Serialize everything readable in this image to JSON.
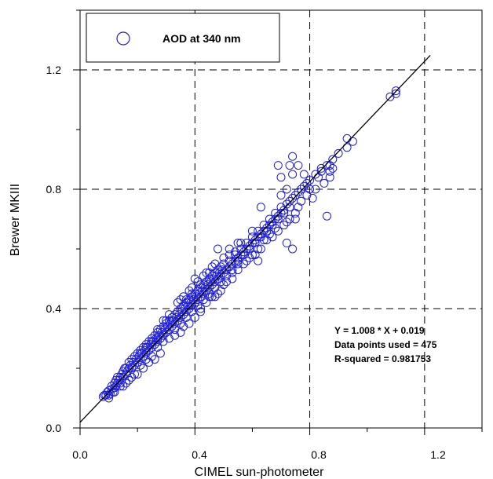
{
  "chart_data": {
    "type": "scatter",
    "xlabel": "CIMEL sun-photometer",
    "ylabel": "Brewer MKIII",
    "xlim": [
      0.0,
      1.4
    ],
    "ylim": [
      0.0,
      1.4
    ],
    "x_ticks": [
      "0.0",
      "0.4",
      "0.8",
      "1.2"
    ],
    "y_ticks": [
      "0.0",
      "0.4",
      "0.8",
      "1.2"
    ],
    "grid": "dashed at major ticks",
    "legend": {
      "placement": "top-left",
      "entry": "AOD at 340 nm",
      "marker": "open-circle"
    },
    "color": "#1f1fd6",
    "fit_line": {
      "slope": 1.008,
      "intercept": 0.019,
      "x_range": [
        0.0,
        1.22
      ]
    },
    "annotations": [
      "Y = 1.008 * X + 0.019",
      "Data points used = 475",
      "R-squared = 0.981753"
    ],
    "series": [
      {
        "name": "AOD at 340 nm",
        "points": [
          [
            0.08,
            0.105
          ],
          [
            0.085,
            0.11
          ],
          [
            0.09,
            0.11
          ],
          [
            0.095,
            0.12
          ],
          [
            0.1,
            0.11
          ],
          [
            0.1,
            0.125
          ],
          [
            0.105,
            0.115
          ],
          [
            0.11,
            0.13
          ],
          [
            0.11,
            0.14
          ],
          [
            0.115,
            0.12
          ],
          [
            0.12,
            0.135
          ],
          [
            0.12,
            0.15
          ],
          [
            0.125,
            0.16
          ],
          [
            0.125,
            0.14
          ],
          [
            0.13,
            0.17
          ],
          [
            0.13,
            0.15
          ],
          [
            0.135,
            0.16
          ],
          [
            0.14,
            0.17
          ],
          [
            0.14,
            0.15
          ],
          [
            0.145,
            0.18
          ],
          [
            0.15,
            0.17
          ],
          [
            0.15,
            0.19
          ],
          [
            0.155,
            0.2
          ],
          [
            0.16,
            0.18
          ],
          [
            0.16,
            0.2
          ],
          [
            0.165,
            0.19
          ],
          [
            0.17,
            0.2
          ],
          [
            0.17,
            0.22
          ],
          [
            0.175,
            0.21
          ],
          [
            0.18,
            0.2
          ],
          [
            0.18,
            0.23
          ],
          [
            0.185,
            0.22
          ],
          [
            0.19,
            0.21
          ],
          [
            0.19,
            0.24
          ],
          [
            0.195,
            0.23
          ],
          [
            0.2,
            0.22
          ],
          [
            0.2,
            0.25
          ],
          [
            0.205,
            0.24
          ],
          [
            0.21,
            0.23
          ],
          [
            0.21,
            0.26
          ],
          [
            0.215,
            0.25
          ],
          [
            0.22,
            0.24
          ],
          [
            0.22,
            0.27
          ],
          [
            0.225,
            0.26
          ],
          [
            0.23,
            0.25
          ],
          [
            0.23,
            0.28
          ],
          [
            0.235,
            0.27
          ],
          [
            0.24,
            0.26
          ],
          [
            0.24,
            0.29
          ],
          [
            0.245,
            0.28
          ],
          [
            0.25,
            0.27
          ],
          [
            0.25,
            0.3
          ],
          [
            0.255,
            0.29
          ],
          [
            0.26,
            0.28
          ],
          [
            0.26,
            0.31
          ],
          [
            0.265,
            0.3
          ],
          [
            0.27,
            0.29
          ],
          [
            0.27,
            0.32
          ],
          [
            0.275,
            0.31
          ],
          [
            0.28,
            0.3
          ],
          [
            0.28,
            0.33
          ],
          [
            0.285,
            0.32
          ],
          [
            0.29,
            0.31
          ],
          [
            0.29,
            0.34
          ],
          [
            0.295,
            0.33
          ],
          [
            0.3,
            0.32
          ],
          [
            0.3,
            0.35
          ],
          [
            0.305,
            0.34
          ],
          [
            0.31,
            0.33
          ],
          [
            0.31,
            0.36
          ],
          [
            0.315,
            0.35
          ],
          [
            0.32,
            0.34
          ],
          [
            0.32,
            0.37
          ],
          [
            0.325,
            0.36
          ],
          [
            0.33,
            0.35
          ],
          [
            0.33,
            0.38
          ],
          [
            0.335,
            0.37
          ],
          [
            0.34,
            0.36
          ],
          [
            0.34,
            0.39
          ],
          [
            0.345,
            0.38
          ],
          [
            0.35,
            0.37
          ],
          [
            0.35,
            0.4
          ],
          [
            0.355,
            0.39
          ],
          [
            0.36,
            0.38
          ],
          [
            0.36,
            0.41
          ],
          [
            0.365,
            0.4
          ],
          [
            0.37,
            0.39
          ],
          [
            0.37,
            0.42
          ],
          [
            0.375,
            0.41
          ],
          [
            0.38,
            0.4
          ],
          [
            0.38,
            0.43
          ],
          [
            0.385,
            0.42
          ],
          [
            0.39,
            0.41
          ],
          [
            0.39,
            0.44
          ],
          [
            0.395,
            0.43
          ],
          [
            0.4,
            0.42
          ],
          [
            0.4,
            0.45
          ],
          [
            0.405,
            0.44
          ],
          [
            0.41,
            0.43
          ],
          [
            0.41,
            0.46
          ],
          [
            0.415,
            0.45
          ],
          [
            0.42,
            0.44
          ],
          [
            0.42,
            0.47
          ],
          [
            0.425,
            0.46
          ],
          [
            0.43,
            0.45
          ],
          [
            0.43,
            0.48
          ],
          [
            0.435,
            0.47
          ],
          [
            0.44,
            0.46
          ],
          [
            0.44,
            0.49
          ],
          [
            0.445,
            0.48
          ],
          [
            0.45,
            0.47
          ],
          [
            0.45,
            0.5
          ],
          [
            0.455,
            0.49
          ],
          [
            0.46,
            0.48
          ],
          [
            0.46,
            0.51
          ],
          [
            0.465,
            0.5
          ],
          [
            0.47,
            0.49
          ],
          [
            0.47,
            0.52
          ],
          [
            0.475,
            0.51
          ],
          [
            0.48,
            0.5
          ],
          [
            0.48,
            0.53
          ],
          [
            0.485,
            0.52
          ],
          [
            0.49,
            0.51
          ],
          [
            0.49,
            0.54
          ],
          [
            0.495,
            0.53
          ],
          [
            0.5,
            0.52
          ],
          [
            0.5,
            0.55
          ],
          [
            0.51,
            0.53
          ],
          [
            0.52,
            0.54
          ],
          [
            0.52,
            0.56
          ],
          [
            0.53,
            0.55
          ],
          [
            0.54,
            0.56
          ],
          [
            0.54,
            0.58
          ],
          [
            0.55,
            0.57
          ],
          [
            0.56,
            0.58
          ],
          [
            0.56,
            0.6
          ],
          [
            0.57,
            0.59
          ],
          [
            0.58,
            0.6
          ],
          [
            0.58,
            0.62
          ],
          [
            0.59,
            0.61
          ],
          [
            0.6,
            0.62
          ],
          [
            0.6,
            0.64
          ],
          [
            0.61,
            0.63
          ],
          [
            0.62,
            0.64
          ],
          [
            0.62,
            0.66
          ],
          [
            0.63,
            0.65
          ],
          [
            0.64,
            0.66
          ],
          [
            0.64,
            0.68
          ],
          [
            0.65,
            0.67
          ],
          [
            0.66,
            0.68
          ],
          [
            0.66,
            0.7
          ],
          [
            0.67,
            0.69
          ],
          [
            0.68,
            0.7
          ],
          [
            0.68,
            0.72
          ],
          [
            0.69,
            0.71
          ],
          [
            0.7,
            0.72
          ],
          [
            0.7,
            0.74
          ],
          [
            0.71,
            0.73
          ],
          [
            0.72,
            0.75
          ],
          [
            0.73,
            0.76
          ],
          [
            0.74,
            0.77
          ],
          [
            0.75,
            0.78
          ],
          [
            0.76,
            0.79
          ],
          [
            0.77,
            0.8
          ],
          [
            0.78,
            0.81
          ],
          [
            0.79,
            0.82
          ],
          [
            0.8,
            0.83
          ],
          [
            0.82,
            0.85
          ],
          [
            0.84,
            0.86
          ],
          [
            0.86,
            0.88
          ],
          [
            0.88,
            0.9
          ],
          [
            0.9,
            0.92
          ],
          [
            0.93,
            0.94
          ],
          [
            0.93,
            0.97
          ],
          [
            0.95,
            0.96
          ],
          [
            1.08,
            1.11
          ],
          [
            1.1,
            1.13
          ],
          [
            1.1,
            1.12
          ],
          [
            0.3,
            0.36
          ],
          [
            0.33,
            0.31
          ],
          [
            0.35,
            0.43
          ],
          [
            0.36,
            0.34
          ],
          [
            0.4,
            0.5
          ],
          [
            0.42,
            0.39
          ],
          [
            0.45,
            0.44
          ],
          [
            0.46,
            0.54
          ],
          [
            0.48,
            0.45
          ],
          [
            0.5,
            0.48
          ],
          [
            0.52,
            0.6
          ],
          [
            0.53,
            0.5
          ],
          [
            0.55,
            0.53
          ],
          [
            0.56,
            0.62
          ],
          [
            0.57,
            0.55
          ],
          [
            0.59,
            0.57
          ],
          [
            0.6,
            0.66
          ],
          [
            0.61,
            0.58
          ],
          [
            0.63,
            0.6
          ],
          [
            0.65,
            0.63
          ],
          [
            0.67,
            0.64
          ],
          [
            0.69,
            0.66
          ],
          [
            0.7,
            0.78
          ],
          [
            0.71,
            0.68
          ],
          [
            0.72,
            0.8
          ],
          [
            0.72,
            0.69
          ],
          [
            0.73,
            0.7
          ],
          [
            0.73,
            0.88
          ],
          [
            0.74,
            0.85
          ],
          [
            0.74,
            0.91
          ],
          [
            0.75,
            0.72
          ],
          [
            0.76,
            0.74
          ],
          [
            0.76,
            0.88
          ],
          [
            0.77,
            0.76
          ],
          [
            0.78,
            0.85
          ],
          [
            0.79,
            0.78
          ],
          [
            0.8,
            0.8
          ],
          [
            0.81,
            0.77
          ],
          [
            0.82,
            0.8
          ],
          [
            0.83,
            0.84
          ],
          [
            0.84,
            0.87
          ],
          [
            0.85,
            0.82
          ],
          [
            0.86,
            0.71
          ],
          [
            0.87,
            0.84
          ],
          [
            0.87,
            0.86
          ],
          [
            0.87,
            0.88
          ],
          [
            0.88,
            0.87
          ],
          [
            0.69,
            0.88
          ],
          [
            0.7,
            0.84
          ],
          [
            0.72,
            0.62
          ],
          [
            0.74,
            0.6
          ],
          [
            0.75,
            0.7
          ],
          [
            0.63,
            0.74
          ],
          [
            0.62,
            0.56
          ],
          [
            0.55,
            0.62
          ],
          [
            0.48,
            0.6
          ],
          [
            0.46,
            0.44
          ],
          [
            0.28,
            0.25
          ],
          [
            0.26,
            0.23
          ],
          [
            0.24,
            0.22
          ],
          [
            0.22,
            0.2
          ],
          [
            0.2,
            0.18
          ],
          [
            0.18,
            0.17
          ],
          [
            0.16,
            0.15
          ],
          [
            0.14,
            0.14
          ],
          [
            0.12,
            0.12
          ],
          [
            0.1,
            0.1
          ],
          [
            0.15,
            0.14
          ],
          [
            0.17,
            0.16
          ],
          [
            0.19,
            0.18
          ],
          [
            0.21,
            0.21
          ],
          [
            0.23,
            0.23
          ],
          [
            0.25,
            0.24
          ],
          [
            0.27,
            0.27
          ],
          [
            0.29,
            0.29
          ],
          [
            0.31,
            0.3
          ],
          [
            0.33,
            0.33
          ],
          [
            0.35,
            0.35
          ],
          [
            0.37,
            0.37
          ],
          [
            0.39,
            0.39
          ],
          [
            0.41,
            0.41
          ],
          [
            0.43,
            0.43
          ],
          [
            0.45,
            0.45
          ],
          [
            0.47,
            0.47
          ],
          [
            0.49,
            0.49
          ],
          [
            0.51,
            0.51
          ],
          [
            0.53,
            0.53
          ],
          [
            0.55,
            0.56
          ],
          [
            0.57,
            0.58
          ],
          [
            0.59,
            0.6
          ],
          [
            0.61,
            0.62
          ],
          [
            0.63,
            0.64
          ],
          [
            0.65,
            0.66
          ],
          [
            0.67,
            0.68
          ],
          [
            0.69,
            0.7
          ],
          [
            0.71,
            0.72
          ],
          [
            0.73,
            0.74
          ],
          [
            0.34,
            0.42
          ],
          [
            0.36,
            0.44
          ],
          [
            0.38,
            0.46
          ],
          [
            0.39,
            0.47
          ],
          [
            0.41,
            0.49
          ],
          [
            0.43,
            0.51
          ],
          [
            0.44,
            0.52
          ],
          [
            0.31,
            0.38
          ],
          [
            0.29,
            0.36
          ],
          [
            0.27,
            0.33
          ],
          [
            0.35,
            0.32
          ],
          [
            0.38,
            0.35
          ],
          [
            0.4,
            0.37
          ],
          [
            0.42,
            0.4
          ],
          [
            0.44,
            0.42
          ],
          [
            0.47,
            0.44
          ],
          [
            0.49,
            0.46
          ],
          [
            0.51,
            0.49
          ],
          [
            0.53,
            0.52
          ],
          [
            0.55,
            0.55
          ],
          [
            0.58,
            0.56
          ],
          [
            0.6,
            0.58
          ],
          [
            0.62,
            0.6
          ],
          [
            0.64,
            0.63
          ],
          [
            0.66,
            0.65
          ],
          [
            0.68,
            0.67
          ],
          [
            0.21,
            0.25
          ],
          [
            0.23,
            0.27
          ],
          [
            0.25,
            0.29
          ],
          [
            0.27,
            0.3
          ],
          [
            0.32,
            0.36
          ],
          [
            0.34,
            0.39
          ],
          [
            0.37,
            0.43
          ],
          [
            0.39,
            0.45
          ],
          [
            0.42,
            0.48
          ],
          [
            0.45,
            0.52
          ],
          [
            0.47,
            0.55
          ],
          [
            0.5,
            0.57
          ],
          [
            0.52,
            0.58
          ],
          [
            0.54,
            0.59
          ]
        ]
      }
    ]
  }
}
